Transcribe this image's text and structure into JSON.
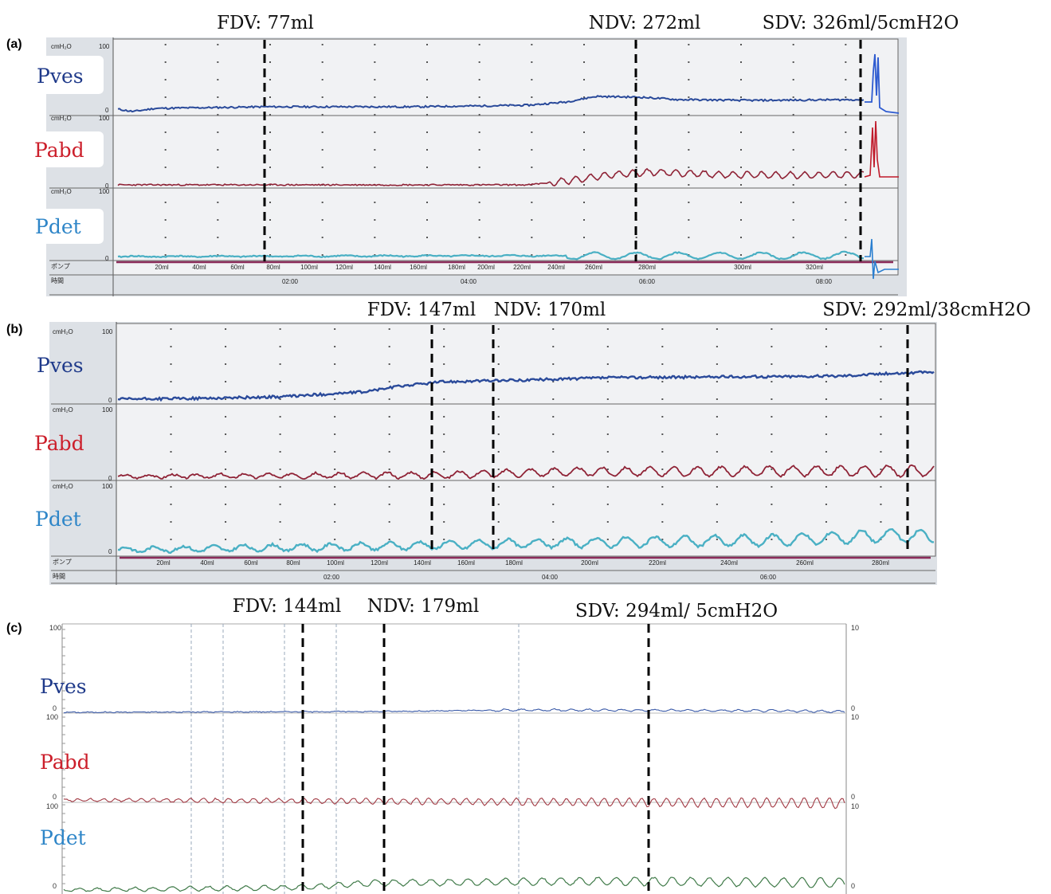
{
  "chart_data": [
    {
      "type": "line",
      "panel": "(a)",
      "series": [
        {
          "name": "Pves",
          "color": "#1f3a8a"
        },
        {
          "name": "Pabd",
          "color": "#a01e2a"
        },
        {
          "name": "Pdet",
          "color": "#3aa0c8"
        }
      ],
      "markers": [
        {
          "label": "FDV: 77ml",
          "volume_ml": 77
        },
        {
          "label": "NDV: 272ml",
          "volume_ml": 272
        },
        {
          "label": "SDV: 326ml/5cmH2O",
          "volume_ml": 326
        }
      ],
      "axis_unit": "cmH₂O",
      "axis_max": "100",
      "axis_min": "0",
      "pump_label": "ポンプ",
      "time_label": "時間",
      "volume_ticks": [
        "20ml",
        "40ml",
        "60ml",
        "80ml",
        "100ml",
        "120ml",
        "140ml",
        "160ml",
        "180ml",
        "200ml",
        "220ml",
        "240ml",
        "260ml",
        "280ml",
        "300ml",
        "320ml"
      ],
      "time_ticks": [
        "02:00",
        "04:00",
        "06:00",
        "08:00"
      ]
    },
    {
      "type": "line",
      "panel": "(b)",
      "series": [
        {
          "name": "Pves",
          "color": "#1f3a8a"
        },
        {
          "name": "Pabd",
          "color": "#a01e2a"
        },
        {
          "name": "Pdet",
          "color": "#3aa0c8"
        }
      ],
      "markers": [
        {
          "label": "FDV: 147ml",
          "volume_ml": 147
        },
        {
          "label": "NDV: 170ml",
          "volume_ml": 170
        },
        {
          "label": "SDV: 292ml/38cmH2O",
          "volume_ml": 292
        }
      ],
      "axis_unit": "cmH₂O",
      "axis_max": "100",
      "axis_min": "0",
      "pump_label": "ポンプ",
      "time_label": "時間",
      "volume_ticks": [
        "20ml",
        "40ml",
        "60ml",
        "80ml",
        "100ml",
        "120ml",
        "140ml",
        "160ml",
        "180ml",
        "200ml",
        "220ml",
        "240ml",
        "260ml",
        "280ml"
      ],
      "time_ticks": [
        "02:00",
        "04:00",
        "06:00"
      ]
    },
    {
      "type": "line",
      "panel": "(c)",
      "series": [
        {
          "name": "Pves",
          "color": "#1f3a8a"
        },
        {
          "name": "Pabd",
          "color": "#a01e2a"
        },
        {
          "name": "Pdet",
          "color": "#3aa0c8"
        }
      ],
      "markers": [
        {
          "label": "FDV: 144ml",
          "volume_ml": 144
        },
        {
          "label": "NDV: 179ml",
          "volume_ml": 179
        },
        {
          "label": "SDV: 294ml/ 5cmH2O",
          "volume_ml": 294
        }
      ],
      "axis_max": "100",
      "axis_min": "0",
      "right_axis_max": "10",
      "right_axis_min": "0"
    }
  ],
  "colors": {
    "pves": "#1f3a8a",
    "pabd": "#cc1f2b",
    "pdet": "#2f86c8",
    "trace_pves": "#2a4a9a",
    "trace_pabd": "#8f2336",
    "trace_pdet_ab": "#4ab0c4",
    "trace_pdet_c": "#3f7a48",
    "paper_ab": "#dde1e6",
    "pump_bar": "#8b2c5a"
  }
}
